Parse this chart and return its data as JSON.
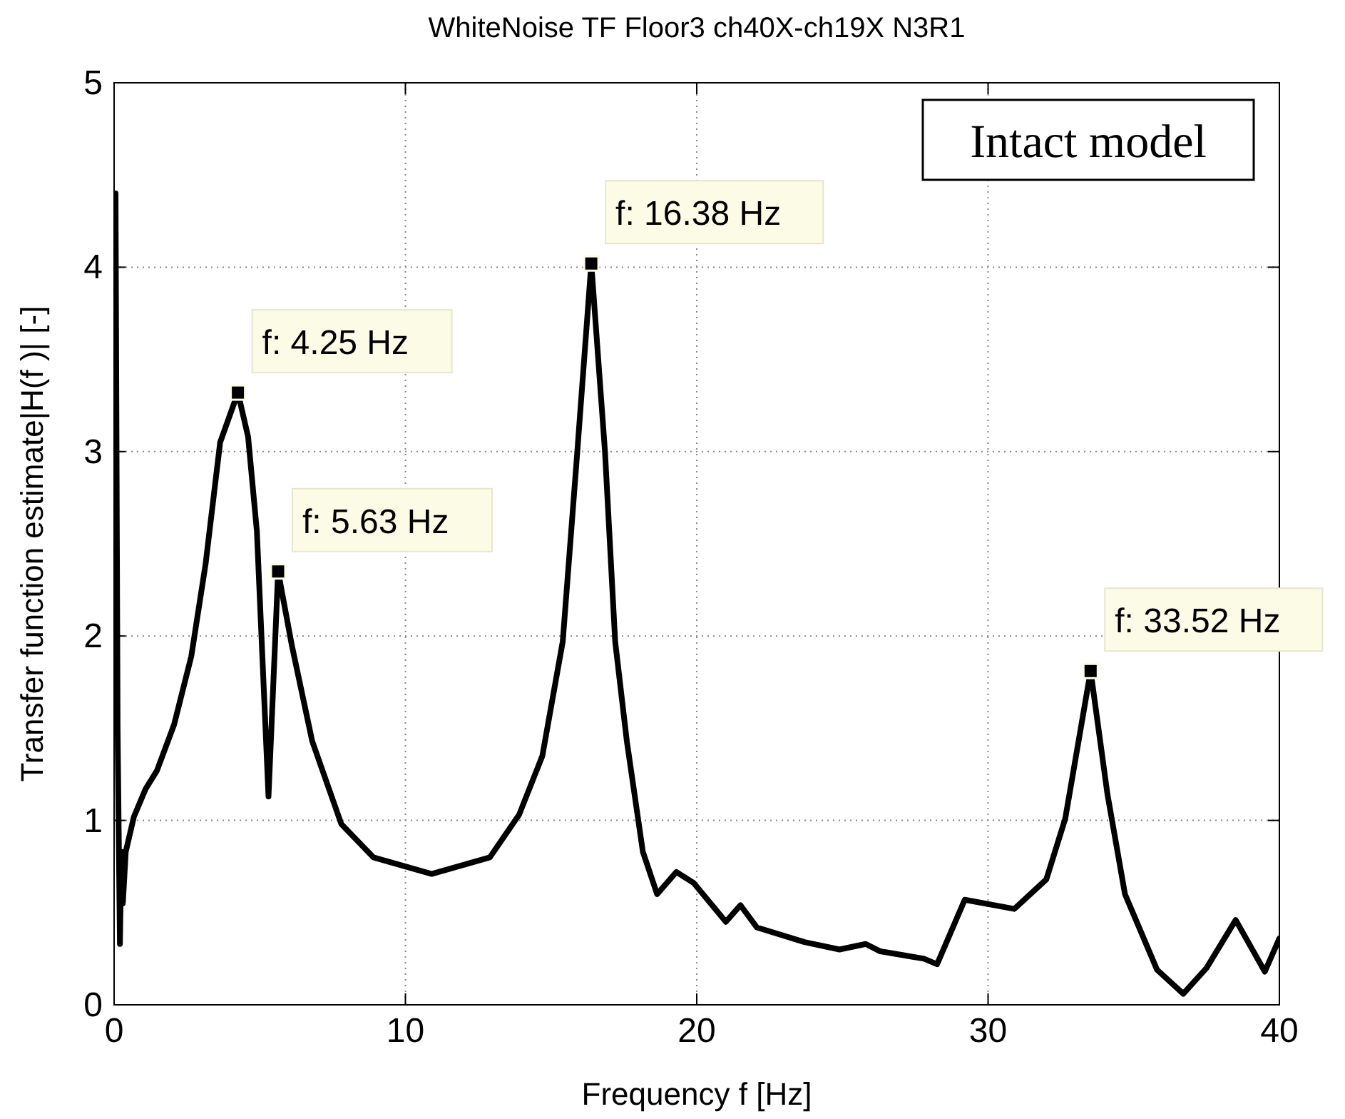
{
  "chart_data": {
    "type": "line",
    "title": "WhiteNoise TF Floor3 ch40X-ch19X N3R1",
    "xlabel": "Frequency f [Hz]",
    "ylabel": "Transfer function estimate|H(f )| [-]",
    "x": [
      0,
      0.05,
      0.12,
      0.2,
      0.25,
      0.3,
      0.4,
      0.68,
      1.08,
      1.47,
      2.06,
      2.65,
      3.14,
      3.64,
      4.25,
      4.6,
      4.9,
      5.3,
      5.63,
      6.1,
      6.8,
      7.8,
      8.9,
      10.9,
      12.9,
      13.9,
      14.7,
      15.4,
      15.9,
      16.38,
      16.85,
      17.2,
      17.6,
      18.15,
      18.64,
      19.3,
      19.9,
      21.0,
      21.5,
      22.06,
      23.7,
      24.9,
      25.8,
      26.3,
      27.8,
      28.25,
      29.2,
      30.9,
      32.0,
      32.65,
      33.52,
      34.1,
      34.7,
      35.8,
      36.7,
      37.5,
      38.5,
      39.5,
      40
    ],
    "series": [
      {
        "color": "#000000",
        "values": [
          4.0,
          4.4,
          1.5,
          0.33,
          0.83,
          0.55,
          0.83,
          1.02,
          1.17,
          1.27,
          1.52,
          1.89,
          2.39,
          3.05,
          3.32,
          3.08,
          2.57,
          1.13,
          2.35,
          1.95,
          1.43,
          0.98,
          0.8,
          0.71,
          0.8,
          1.03,
          1.35,
          1.97,
          3.0,
          4.02,
          3.0,
          1.97,
          1.43,
          0.83,
          0.6,
          0.72,
          0.66,
          0.45,
          0.54,
          0.42,
          0.34,
          0.3,
          0.33,
          0.29,
          0.25,
          0.22,
          0.57,
          0.52,
          0.68,
          1.01,
          1.81,
          1.14,
          0.6,
          0.19,
          0.06,
          0.2,
          0.46,
          0.18,
          0.36
        ]
      }
    ],
    "xlim": [
      0,
      40
    ],
    "ylim": [
      0,
      5
    ],
    "xticks": [
      0,
      10,
      20,
      30,
      40
    ],
    "yticks": [
      0,
      1,
      2,
      3,
      4,
      5
    ],
    "grid": true,
    "marker": "none",
    "line_style": "solid",
    "annotations": [
      {
        "text": "f: 4.25 Hz",
        "x": 4.25,
        "y": 3.32
      },
      {
        "text": "f: 5.63 Hz",
        "x": 5.63,
        "y": 2.35
      },
      {
        "text": "f: 16.38 Hz",
        "x": 16.38,
        "y": 4.02
      },
      {
        "text": "f: 33.52 Hz",
        "x": 33.52,
        "y": 1.81
      },
      "Intact model"
    ]
  }
}
